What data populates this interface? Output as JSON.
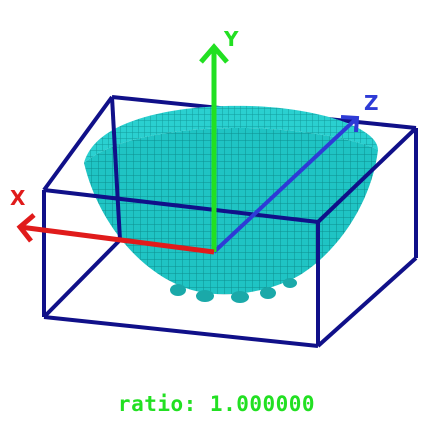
{
  "viewer": {
    "ratio_label": "ratio: 1.000000",
    "background": "#ffffff",
    "mesh_color": "#1fc4c4",
    "mesh_line_color": "#0d8a8a",
    "bbox_color": "#101089"
  },
  "axes": {
    "x": {
      "label": "X",
      "color": "#e01b1b"
    },
    "y": {
      "label": "Y",
      "color": "#22e022"
    },
    "z": {
      "label": "Z",
      "color": "#2e3bd6"
    }
  }
}
